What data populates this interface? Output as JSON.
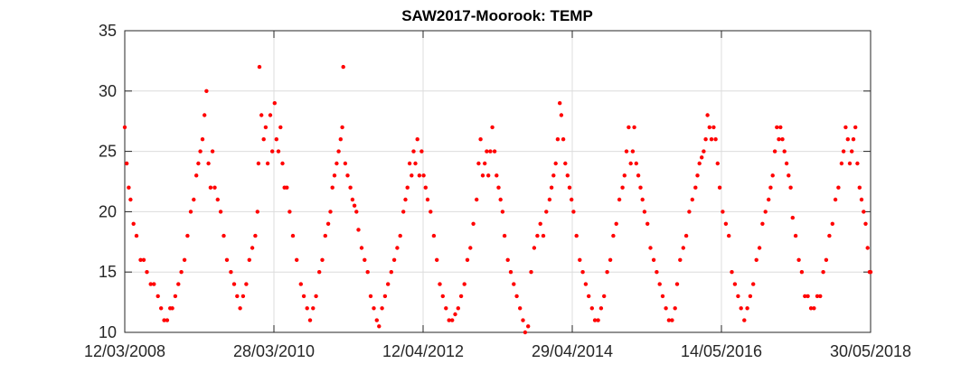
{
  "chart_data": {
    "type": "scatter",
    "title": "SAW2017-Moorook: TEMP",
    "xlabel": "",
    "ylabel": "",
    "x_tick_labels": [
      "12/03/2008",
      "28/03/2010",
      "12/04/2012",
      "29/04/2014",
      "14/05/2016",
      "30/05/2018"
    ],
    "y_tick_labels": [
      "10",
      "15",
      "20",
      "25",
      "30",
      "35"
    ],
    "xlim": [
      "2008-03-12",
      "2018-05-30"
    ],
    "ylim": [
      10,
      35
    ],
    "grid": true,
    "marker_color": "#ff0000",
    "series": [
      {
        "points": [
          [
            "2008-03-12",
            27
          ],
          [
            "2008-03-22",
            24
          ],
          [
            "2008-04-01",
            22
          ],
          [
            "2008-04-10",
            21
          ],
          [
            "2008-04-25",
            19
          ],
          [
            "2008-05-10",
            18
          ],
          [
            "2008-05-30",
            16
          ],
          [
            "2008-06-15",
            16
          ],
          [
            "2008-07-01",
            15
          ],
          [
            "2008-07-20",
            14
          ],
          [
            "2008-08-05",
            14
          ],
          [
            "2008-08-25",
            13
          ],
          [
            "2008-09-10",
            12
          ],
          [
            "2008-09-25",
            11
          ],
          [
            "2008-10-10",
            11
          ],
          [
            "2008-10-25",
            12
          ],
          [
            "2008-11-05",
            12
          ],
          [
            "2008-11-20",
            13
          ],
          [
            "2008-12-05",
            14
          ],
          [
            "2008-12-20",
            15
          ],
          [
            "2009-01-05",
            16
          ],
          [
            "2009-01-20",
            18
          ],
          [
            "2009-02-05",
            20
          ],
          [
            "2009-02-20",
            21
          ],
          [
            "2009-03-05",
            23
          ],
          [
            "2009-03-15",
            24
          ],
          [
            "2009-03-25",
            25
          ],
          [
            "2009-04-05",
            26
          ],
          [
            "2009-04-15",
            28
          ],
          [
            "2009-04-25",
            30
          ],
          [
            "2009-05-05",
            24
          ],
          [
            "2009-05-15",
            22
          ],
          [
            "2009-05-25",
            25
          ],
          [
            "2009-06-05",
            22
          ],
          [
            "2009-06-20",
            21
          ],
          [
            "2009-07-05",
            20
          ],
          [
            "2009-07-20",
            18
          ],
          [
            "2009-08-05",
            16
          ],
          [
            "2009-08-25",
            15
          ],
          [
            "2009-09-10",
            14
          ],
          [
            "2009-09-25",
            13
          ],
          [
            "2009-10-10",
            12
          ],
          [
            "2009-10-25",
            13
          ],
          [
            "2009-11-10",
            14
          ],
          [
            "2009-11-25",
            16
          ],
          [
            "2009-12-10",
            17
          ],
          [
            "2009-12-25",
            18
          ],
          [
            "2010-01-05",
            20
          ],
          [
            "2010-01-10",
            24
          ],
          [
            "2010-01-15",
            32
          ],
          [
            "2010-01-25",
            28
          ],
          [
            "2010-02-05",
            26
          ],
          [
            "2010-02-15",
            27
          ],
          [
            "2010-02-25",
            24
          ],
          [
            "2010-03-10",
            28
          ],
          [
            "2010-03-20",
            25
          ],
          [
            "2010-04-01",
            29
          ],
          [
            "2010-04-10",
            26
          ],
          [
            "2010-04-20",
            25
          ],
          [
            "2010-04-30",
            27
          ],
          [
            "2010-05-10",
            24
          ],
          [
            "2010-05-20",
            22
          ],
          [
            "2010-06-01",
            22
          ],
          [
            "2010-06-15",
            20
          ],
          [
            "2010-07-01",
            18
          ],
          [
            "2010-07-20",
            16
          ],
          [
            "2010-08-10",
            14
          ],
          [
            "2010-08-25",
            13
          ],
          [
            "2010-09-10",
            12
          ],
          [
            "2010-09-25",
            11
          ],
          [
            "2010-10-10",
            12
          ],
          [
            "2010-10-25",
            13
          ],
          [
            "2010-11-10",
            15
          ],
          [
            "2010-11-25",
            16
          ],
          [
            "2010-12-10",
            18
          ],
          [
            "2010-12-25",
            19
          ],
          [
            "2011-01-05",
            20
          ],
          [
            "2011-01-15",
            22
          ],
          [
            "2011-01-25",
            23
          ],
          [
            "2011-02-05",
            24
          ],
          [
            "2011-02-15",
            25
          ],
          [
            "2011-02-25",
            26
          ],
          [
            "2011-03-05",
            27
          ],
          [
            "2011-03-10",
            32
          ],
          [
            "2011-03-20",
            24
          ],
          [
            "2011-04-01",
            23
          ],
          [
            "2011-04-15",
            22
          ],
          [
            "2011-04-25",
            21
          ],
          [
            "2011-05-05",
            20.5
          ],
          [
            "2011-05-15",
            20
          ],
          [
            "2011-05-25",
            18.5
          ],
          [
            "2011-06-10",
            17
          ],
          [
            "2011-06-25",
            16
          ],
          [
            "2011-07-10",
            15
          ],
          [
            "2011-07-25",
            13
          ],
          [
            "2011-08-10",
            12
          ],
          [
            "2011-08-25",
            11
          ],
          [
            "2011-09-05",
            10.5
          ],
          [
            "2011-09-20",
            12
          ],
          [
            "2011-10-05",
            13
          ],
          [
            "2011-10-20",
            14
          ],
          [
            "2011-11-05",
            15
          ],
          [
            "2011-11-20",
            16
          ],
          [
            "2011-12-05",
            17
          ],
          [
            "2011-12-20",
            18
          ],
          [
            "2012-01-05",
            20
          ],
          [
            "2012-01-15",
            21
          ],
          [
            "2012-01-25",
            22
          ],
          [
            "2012-02-05",
            24
          ],
          [
            "2012-02-15",
            23
          ],
          [
            "2012-02-25",
            25
          ],
          [
            "2012-03-05",
            24
          ],
          [
            "2012-03-15",
            26
          ],
          [
            "2012-03-25",
            23
          ],
          [
            "2012-04-05",
            25
          ],
          [
            "2012-04-15",
            23
          ],
          [
            "2012-04-25",
            22
          ],
          [
            "2012-05-05",
            21
          ],
          [
            "2012-05-20",
            20
          ],
          [
            "2012-06-05",
            18
          ],
          [
            "2012-06-20",
            16
          ],
          [
            "2012-07-05",
            14
          ],
          [
            "2012-07-20",
            13
          ],
          [
            "2012-08-05",
            12
          ],
          [
            "2012-08-20",
            11
          ],
          [
            "2012-09-05",
            11
          ],
          [
            "2012-09-20",
            11.5
          ],
          [
            "2012-10-05",
            12
          ],
          [
            "2012-10-20",
            13
          ],
          [
            "2012-11-05",
            14
          ],
          [
            "2012-11-20",
            16
          ],
          [
            "2012-12-05",
            17
          ],
          [
            "2012-12-20",
            19
          ],
          [
            "2013-01-05",
            21
          ],
          [
            "2013-01-15",
            24
          ],
          [
            "2013-01-25",
            26
          ],
          [
            "2013-02-05",
            23
          ],
          [
            "2013-02-15",
            24
          ],
          [
            "2013-02-25",
            25
          ],
          [
            "2013-03-05",
            23
          ],
          [
            "2013-03-15",
            25
          ],
          [
            "2013-03-25",
            27
          ],
          [
            "2013-04-05",
            25
          ],
          [
            "2013-04-15",
            23
          ],
          [
            "2013-04-25",
            22
          ],
          [
            "2013-05-05",
            21
          ],
          [
            "2013-05-15",
            20
          ],
          [
            "2013-05-25",
            18
          ],
          [
            "2013-06-10",
            16
          ],
          [
            "2013-06-25",
            15
          ],
          [
            "2013-07-10",
            14
          ],
          [
            "2013-07-25",
            13
          ],
          [
            "2013-08-10",
            12
          ],
          [
            "2013-08-25",
            11
          ],
          [
            "2013-09-05",
            10
          ],
          [
            "2013-09-20",
            10.5
          ],
          [
            "2013-10-05",
            15
          ],
          [
            "2013-10-20",
            17
          ],
          [
            "2013-11-05",
            18
          ],
          [
            "2013-11-20",
            19
          ],
          [
            "2013-12-05",
            18
          ],
          [
            "2013-12-20",
            20
          ],
          [
            "2014-01-05",
            21
          ],
          [
            "2014-01-15",
            22
          ],
          [
            "2014-01-25",
            23
          ],
          [
            "2014-02-05",
            24
          ],
          [
            "2014-02-15",
            26
          ],
          [
            "2014-02-25",
            29
          ],
          [
            "2014-03-05",
            28
          ],
          [
            "2014-03-15",
            26
          ],
          [
            "2014-03-25",
            24
          ],
          [
            "2014-04-05",
            23
          ],
          [
            "2014-04-15",
            22
          ],
          [
            "2014-04-25",
            21
          ],
          [
            "2014-05-05",
            20
          ],
          [
            "2014-05-20",
            18
          ],
          [
            "2014-06-05",
            16
          ],
          [
            "2014-06-20",
            15
          ],
          [
            "2014-07-05",
            14
          ],
          [
            "2014-07-20",
            13
          ],
          [
            "2014-08-05",
            12
          ],
          [
            "2014-08-20",
            11
          ],
          [
            "2014-09-05",
            11
          ],
          [
            "2014-09-20",
            12
          ],
          [
            "2014-10-05",
            13
          ],
          [
            "2014-10-20",
            15
          ],
          [
            "2014-11-05",
            16
          ],
          [
            "2014-11-20",
            18
          ],
          [
            "2014-12-05",
            19
          ],
          [
            "2014-12-20",
            21
          ],
          [
            "2015-01-05",
            22
          ],
          [
            "2015-01-15",
            23
          ],
          [
            "2015-01-25",
            25
          ],
          [
            "2015-02-05",
            27
          ],
          [
            "2015-02-15",
            24
          ],
          [
            "2015-02-25",
            25
          ],
          [
            "2015-03-05",
            27
          ],
          [
            "2015-03-15",
            24
          ],
          [
            "2015-03-25",
            23
          ],
          [
            "2015-04-05",
            22
          ],
          [
            "2015-04-15",
            21
          ],
          [
            "2015-04-25",
            20
          ],
          [
            "2015-05-10",
            19
          ],
          [
            "2015-05-25",
            17
          ],
          [
            "2015-06-10",
            16
          ],
          [
            "2015-06-25",
            15
          ],
          [
            "2015-07-10",
            14
          ],
          [
            "2015-07-25",
            13
          ],
          [
            "2015-08-10",
            12
          ],
          [
            "2015-08-25",
            11
          ],
          [
            "2015-09-10",
            11
          ],
          [
            "2015-09-25",
            12
          ],
          [
            "2015-10-05",
            14
          ],
          [
            "2015-10-20",
            16
          ],
          [
            "2015-11-05",
            17
          ],
          [
            "2015-11-20",
            18
          ],
          [
            "2015-12-05",
            20
          ],
          [
            "2015-12-20",
            21
          ],
          [
            "2016-01-05",
            22
          ],
          [
            "2016-01-15",
            23
          ],
          [
            "2016-01-25",
            24
          ],
          [
            "2016-02-05",
            24.5
          ],
          [
            "2016-02-15",
            25
          ],
          [
            "2016-02-25",
            26
          ],
          [
            "2016-03-05",
            28
          ],
          [
            "2016-03-15",
            27
          ],
          [
            "2016-03-25",
            26
          ],
          [
            "2016-04-05",
            27
          ],
          [
            "2016-04-15",
            26
          ],
          [
            "2016-04-25",
            24
          ],
          [
            "2016-05-05",
            22
          ],
          [
            "2016-05-20",
            20
          ],
          [
            "2016-06-05",
            19
          ],
          [
            "2016-06-20",
            18
          ],
          [
            "2016-07-05",
            15
          ],
          [
            "2016-07-20",
            14
          ],
          [
            "2016-08-05",
            13
          ],
          [
            "2016-08-20",
            12
          ],
          [
            "2016-09-05",
            11
          ],
          [
            "2016-09-20",
            12
          ],
          [
            "2016-10-05",
            13
          ],
          [
            "2016-10-20",
            14
          ],
          [
            "2016-11-05",
            16
          ],
          [
            "2016-11-20",
            17
          ],
          [
            "2016-12-05",
            19
          ],
          [
            "2016-12-20",
            20
          ],
          [
            "2017-01-05",
            21
          ],
          [
            "2017-01-15",
            22
          ],
          [
            "2017-01-25",
            23
          ],
          [
            "2017-02-05",
            25
          ],
          [
            "2017-02-15",
            27
          ],
          [
            "2017-02-25",
            26
          ],
          [
            "2017-03-05",
            27
          ],
          [
            "2017-03-15",
            26
          ],
          [
            "2017-03-25",
            25
          ],
          [
            "2017-04-05",
            24
          ],
          [
            "2017-04-15",
            23
          ],
          [
            "2017-04-25",
            22
          ],
          [
            "2017-05-05",
            19.5
          ],
          [
            "2017-05-20",
            18
          ],
          [
            "2017-06-05",
            16
          ],
          [
            "2017-06-20",
            15
          ],
          [
            "2017-07-05",
            13
          ],
          [
            "2017-07-20",
            13
          ],
          [
            "2017-08-05",
            12
          ],
          [
            "2017-08-20",
            12
          ],
          [
            "2017-09-05",
            13
          ],
          [
            "2017-09-20",
            13
          ],
          [
            "2017-10-05",
            15
          ],
          [
            "2017-10-20",
            16
          ],
          [
            "2017-11-05",
            18
          ],
          [
            "2017-11-20",
            19
          ],
          [
            "2017-12-05",
            21
          ],
          [
            "2017-12-20",
            22
          ],
          [
            "2018-01-05",
            24
          ],
          [
            "2018-01-15",
            25
          ],
          [
            "2018-01-25",
            27
          ],
          [
            "2018-02-05",
            26
          ],
          [
            "2018-02-15",
            24
          ],
          [
            "2018-02-25",
            25
          ],
          [
            "2018-03-05",
            26
          ],
          [
            "2018-03-15",
            27
          ],
          [
            "2018-03-25",
            24
          ],
          [
            "2018-04-05",
            22
          ],
          [
            "2018-04-15",
            21
          ],
          [
            "2018-04-25",
            20
          ],
          [
            "2018-05-05",
            19
          ],
          [
            "2018-05-15",
            17
          ],
          [
            "2018-05-25",
            15
          ],
          [
            "2018-05-30",
            15
          ]
        ]
      }
    ]
  }
}
